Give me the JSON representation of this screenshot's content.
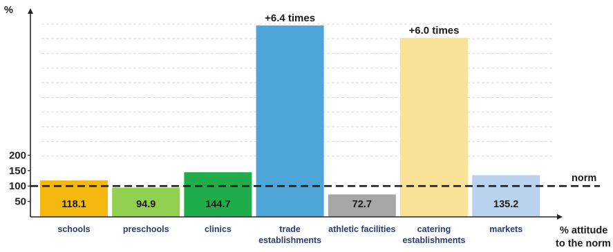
{
  "chart_data": {
    "type": "bar",
    "title": "",
    "ylabel": "%",
    "xlabel": "% attitude to the norm",
    "yticks": [
      50,
      100,
      150,
      200
    ],
    "norm": {
      "value": 100,
      "label": "norm"
    },
    "categories": [
      {
        "name": "schools",
        "lines": [
          "schools"
        ],
        "value": 118.1,
        "label": "118.1",
        "color": "#f5b80f"
      },
      {
        "name": "preschools",
        "lines": [
          "preschools"
        ],
        "value": 94.9,
        "label": "94.9",
        "color": "#92d050"
      },
      {
        "name": "clinics",
        "lines": [
          "clinics"
        ],
        "value": 144.7,
        "label": "144.7",
        "color": "#1fad4b"
      },
      {
        "name": "trade establishments",
        "lines": [
          "trade",
          "establishments"
        ],
        "value": 640,
        "label": "+6.4 times",
        "color": "#4ea6d8"
      },
      {
        "name": "athletic facilities",
        "lines": [
          "athletic facilities"
        ],
        "value": 72.7,
        "label": "72.7",
        "color": "#a6a6a6"
      },
      {
        "name": "catering establishments",
        "lines": [
          "catering",
          "establishments"
        ],
        "value": 600,
        "label": "+6.0 times",
        "color": "#fbe299"
      },
      {
        "name": "markets",
        "lines": [
          "markets"
        ],
        "value": 135.2,
        "label": "135.2",
        "color": "#b9d3ee"
      }
    ]
  }
}
